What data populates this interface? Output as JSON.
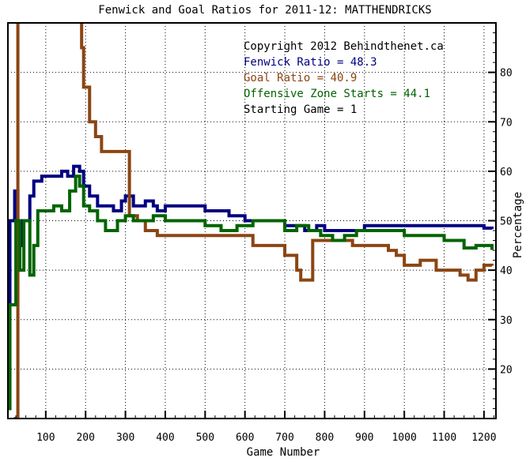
{
  "chart_data": {
    "type": "line",
    "title": "Fenwick and Goal Ratios for 2011-12: MATTHENDRICKS",
    "xlabel": "Game Number",
    "ylabel": "Percentage",
    "xlim": [
      5,
      1230
    ],
    "ylim": [
      10,
      90
    ],
    "x_ticks": [
      100,
      200,
      300,
      400,
      500,
      600,
      700,
      800,
      900,
      1000,
      1100,
      1200
    ],
    "y_ticks": [
      20,
      30,
      40,
      50,
      60,
      70,
      80
    ],
    "grid": "dotted",
    "legend_position": "top-right",
    "annotations": [
      "Copyright 2012 Behindthenet.ca",
      "Starting Game = 1"
    ],
    "series": [
      {
        "name": "Fenwick Ratio = 48.3",
        "color": "#000080",
        "points": [
          [
            5,
            12
          ],
          [
            10,
            50
          ],
          [
            18,
            50
          ],
          [
            22,
            56
          ],
          [
            30,
            45
          ],
          [
            40,
            50
          ],
          [
            55,
            50
          ],
          [
            60,
            55
          ],
          [
            70,
            58
          ],
          [
            90,
            59
          ],
          [
            120,
            59
          ],
          [
            140,
            60
          ],
          [
            155,
            59
          ],
          [
            170,
            61
          ],
          [
            185,
            60
          ],
          [
            195,
            57
          ],
          [
            210,
            55
          ],
          [
            230,
            53
          ],
          [
            250,
            53
          ],
          [
            270,
            52
          ],
          [
            290,
            54
          ],
          [
            300,
            55
          ],
          [
            320,
            53
          ],
          [
            350,
            54
          ],
          [
            370,
            53
          ],
          [
            380,
            52
          ],
          [
            400,
            53
          ],
          [
            450,
            53
          ],
          [
            480,
            53
          ],
          [
            500,
            52
          ],
          [
            530,
            52
          ],
          [
            560,
            51
          ],
          [
            600,
            50
          ],
          [
            620,
            50
          ],
          [
            650,
            50
          ],
          [
            700,
            49
          ],
          [
            720,
            49
          ],
          [
            750,
            48
          ],
          [
            780,
            49
          ],
          [
            800,
            48
          ],
          [
            830,
            48
          ],
          [
            860,
            48
          ],
          [
            900,
            49
          ],
          [
            950,
            49
          ],
          [
            1000,
            49
          ],
          [
            1050,
            49
          ],
          [
            1100,
            49
          ],
          [
            1150,
            49
          ],
          [
            1200,
            48.5
          ],
          [
            1220,
            48.3
          ]
        ]
      },
      {
        "name": "Goal Ratio = 40.9",
        "color": "#8b4513",
        "points": [
          [
            20,
            10
          ],
          [
            30,
            95
          ],
          [
            160,
            95
          ],
          [
            190,
            85
          ],
          [
            195,
            77
          ],
          [
            210,
            70
          ],
          [
            225,
            67
          ],
          [
            240,
            64
          ],
          [
            270,
            64
          ],
          [
            305,
            64
          ],
          [
            310,
            51
          ],
          [
            330,
            50
          ],
          [
            350,
            48
          ],
          [
            380,
            47
          ],
          [
            450,
            47
          ],
          [
            500,
            47
          ],
          [
            560,
            47
          ],
          [
            610,
            47
          ],
          [
            620,
            45
          ],
          [
            650,
            45
          ],
          [
            690,
            45
          ],
          [
            700,
            43
          ],
          [
            720,
            43
          ],
          [
            730,
            40
          ],
          [
            740,
            38
          ],
          [
            750,
            38
          ],
          [
            770,
            46
          ],
          [
            800,
            46
          ],
          [
            860,
            46
          ],
          [
            870,
            45
          ],
          [
            890,
            45
          ],
          [
            940,
            45
          ],
          [
            960,
            44
          ],
          [
            980,
            43
          ],
          [
            1000,
            41
          ],
          [
            1020,
            41
          ],
          [
            1040,
            42
          ],
          [
            1080,
            40
          ],
          [
            1120,
            40
          ],
          [
            1140,
            39
          ],
          [
            1160,
            38
          ],
          [
            1180,
            40
          ],
          [
            1200,
            41
          ],
          [
            1220,
            40.9
          ]
        ]
      },
      {
        "name": "Offensive Zone Starts = 44.1",
        "color": "#006400",
        "points": [
          [
            5,
            12
          ],
          [
            10,
            33
          ],
          [
            20,
            33
          ],
          [
            25,
            50
          ],
          [
            35,
            40
          ],
          [
            45,
            50
          ],
          [
            60,
            39
          ],
          [
            70,
            45
          ],
          [
            80,
            52
          ],
          [
            90,
            52
          ],
          [
            120,
            53
          ],
          [
            140,
            52
          ],
          [
            160,
            56
          ],
          [
            175,
            59
          ],
          [
            185,
            57
          ],
          [
            195,
            53
          ],
          [
            210,
            52
          ],
          [
            230,
            50
          ],
          [
            250,
            48
          ],
          [
            280,
            50
          ],
          [
            300,
            51
          ],
          [
            320,
            50
          ],
          [
            350,
            50
          ],
          [
            370,
            51
          ],
          [
            400,
            50
          ],
          [
            450,
            50
          ],
          [
            500,
            49
          ],
          [
            540,
            48
          ],
          [
            580,
            49
          ],
          [
            600,
            49
          ],
          [
            620,
            50
          ],
          [
            650,
            50
          ],
          [
            700,
            48
          ],
          [
            730,
            49
          ],
          [
            760,
            48
          ],
          [
            790,
            47
          ],
          [
            820,
            46
          ],
          [
            850,
            47
          ],
          [
            880,
            48
          ],
          [
            900,
            48
          ],
          [
            950,
            48
          ],
          [
            1000,
            47
          ],
          [
            1050,
            47
          ],
          [
            1100,
            46
          ],
          [
            1150,
            44.5
          ],
          [
            1180,
            45
          ],
          [
            1200,
            45
          ],
          [
            1220,
            44.1
          ]
        ]
      }
    ]
  }
}
